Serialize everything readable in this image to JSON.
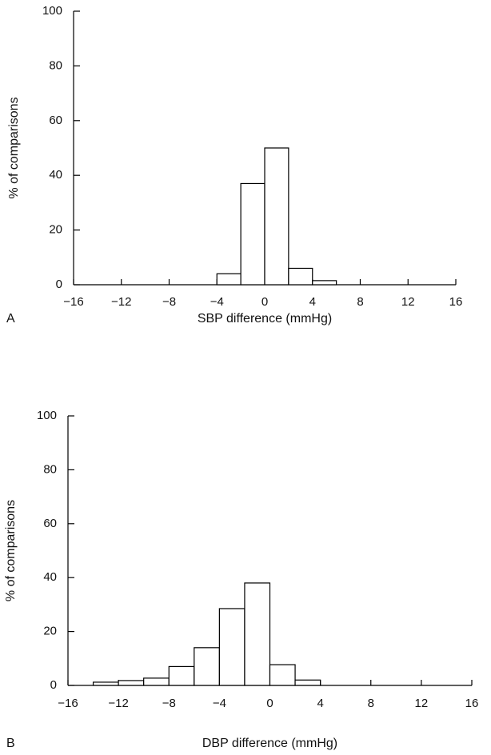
{
  "chart_data": [
    {
      "type": "histogram",
      "panel_label": "A",
      "xlabel": "SBP difference (mmHg)",
      "ylabel": "% of comparisons",
      "bins": [
        -4,
        -2,
        0,
        2,
        4,
        6
      ],
      "values": [
        4,
        37,
        50,
        6,
        1.5
      ],
      "color": "#ffffff",
      "edgecolor": "#000000",
      "xlim": [
        -16,
        16
      ],
      "ylim": [
        0,
        100
      ],
      "xticks": [
        {
          "value": -16,
          "label": "−16"
        },
        {
          "value": -12,
          "label": "−12"
        },
        {
          "value": -8,
          "label": "−8"
        },
        {
          "value": -4,
          "label": "−4"
        },
        0,
        4,
        8,
        12,
        16
      ],
      "yticks": [
        0,
        20,
        40,
        60,
        80,
        100
      ]
    },
    {
      "type": "histogram",
      "panel_label": "B",
      "xlabel": "DBP difference (mmHg)",
      "ylabel": "% of comparisons",
      "bins": [
        -14,
        -12,
        -10,
        -8,
        -6,
        -4,
        -2,
        0,
        2,
        4
      ],
      "values": [
        1.2,
        1.8,
        2.7,
        7,
        14,
        28.5,
        38,
        7.7,
        2
      ],
      "color": "#ffffff",
      "edgecolor": "#000000",
      "xlim": [
        -16,
        16
      ],
      "ylim": [
        0,
        100
      ],
      "xticks": [
        {
          "value": -16,
          "label": "−16"
        },
        {
          "value": -12,
          "label": "−12"
        },
        {
          "value": -8,
          "label": "−8"
        },
        {
          "value": -4,
          "label": "−4"
        },
        0,
        4,
        8,
        12,
        16
      ],
      "yticks": [
        0,
        20,
        40,
        60,
        80,
        100
      ]
    }
  ]
}
